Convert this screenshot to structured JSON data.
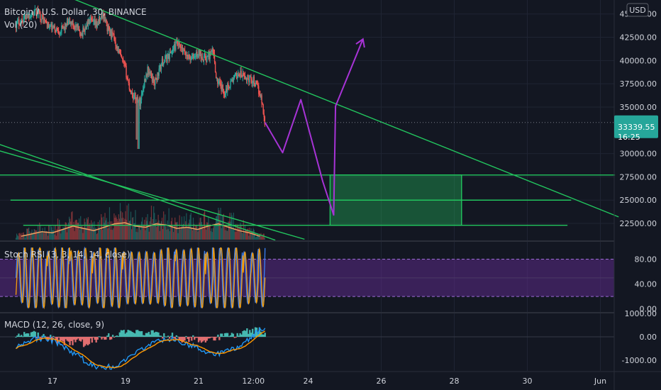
{
  "colors": {
    "background": "#131722",
    "grid": "#1f2433",
    "up": "#26a69a",
    "down": "#ef5350",
    "trendline": "#22c55e",
    "drawing": "#a733d6",
    "price_tag": "#26a69a",
    "volume_ma": "#f0a060",
    "stoch_k": "#3b82f6",
    "stoch_d": "#f59e0b",
    "stoch_band": "#5b2a86",
    "macd_line": "#2196f3",
    "macd_signal": "#ff9800"
  },
  "header": {
    "title": "Bitcoin / U.S. Dollar, 30, BINANCE",
    "volume_label": "Vol (20)",
    "currency_button": "USD"
  },
  "last_price": {
    "value": "33339.55",
    "countdown": "16:25"
  },
  "chart_data": [
    {
      "type": "candlestick",
      "name": "price",
      "title": "Bitcoin / U.S. Dollar, 30, BINANCE",
      "x_ticks": [
        "17",
        "19",
        "21",
        "12:00",
        "24",
        "26",
        "28",
        "30",
        "Jun"
      ],
      "y_ticks": [
        "45000.00",
        "42500.00",
        "40000.00",
        "37500.00",
        "35000.00",
        "30000.00",
        "27500.00",
        "25000.00",
        "22500.00"
      ],
      "ylim": [
        20600,
        46500
      ],
      "close_path": [
        [
          16.0,
          43900
        ],
        [
          16.3,
          44800
        ],
        [
          16.6,
          45200
        ],
        [
          16.9,
          43600
        ],
        [
          17.2,
          43200
        ],
        [
          17.5,
          44100
        ],
        [
          17.8,
          42900
        ],
        [
          18.0,
          44200
        ],
        [
          18.2,
          43800
        ],
        [
          18.4,
          45000
        ],
        [
          18.5,
          43500
        ],
        [
          18.7,
          42300
        ],
        [
          18.8,
          41000
        ],
        [
          19.0,
          39000
        ],
        [
          19.1,
          37200
        ],
        [
          19.2,
          36200
        ],
        [
          19.3,
          36000
        ],
        [
          19.4,
          35500
        ],
        [
          19.5,
          37500
        ],
        [
          19.6,
          39000
        ],
        [
          19.8,
          37600
        ],
        [
          20.0,
          39800
        ],
        [
          20.2,
          40600
        ],
        [
          20.4,
          41800
        ],
        [
          20.6,
          40800
        ],
        [
          20.8,
          40200
        ],
        [
          21.0,
          40800
        ],
        [
          21.2,
          40200
        ],
        [
          21.4,
          41000
        ],
        [
          21.5,
          37800
        ],
        [
          21.7,
          36600
        ],
        [
          21.9,
          37800
        ],
        [
          22.1,
          38600
        ],
        [
          22.3,
          38100
        ],
        [
          22.5,
          37900
        ],
        [
          22.7,
          36300
        ],
        [
          22.82,
          33300
        ]
      ],
      "candle_seed": 17,
      "projection": [
        [
          22.82,
          33339
        ],
        [
          23.3,
          30100
        ],
        [
          23.8,
          35800
        ],
        [
          24.4,
          27000
        ],
        [
          24.7,
          23400
        ],
        [
          24.75,
          35100
        ],
        [
          25.5,
          42300
        ]
      ],
      "zone": {
        "x": [
          24.6,
          28.2
        ],
        "y": [
          22300,
          27700
        ]
      },
      "levels": [
        {
          "price": 27700,
          "x": [
            13.55,
            32.4
          ]
        },
        {
          "price": 25000,
          "x": [
            15.85,
            31.2
          ]
        },
        {
          "price": 22300,
          "x": [
            16.2,
            31.1
          ]
        }
      ],
      "trendlines": [
        {
          "from": [
            16.05,
            49000
          ],
          "to": [
            32.5,
            23200
          ]
        },
        {
          "from": [
            10.4,
            38000
          ],
          "to": [
            23.1,
            20700
          ]
        },
        {
          "from": [
            12.3,
            34000
          ],
          "to": [
            23.9,
            20800
          ]
        }
      ],
      "volume": {
        "label": "Vol (20)",
        "series": [
          0.15,
          0.25,
          0.35,
          0.3,
          0.45,
          0.6,
          0.5,
          0.4,
          0.55,
          0.7,
          0.75,
          0.6,
          0.55,
          0.7,
          0.65,
          0.5,
          0.55,
          0.45,
          0.6,
          0.7,
          0.55,
          0.4,
          0.3,
          0.15
        ]
      }
    },
    {
      "type": "line",
      "name": "stoch-rsi",
      "title": "Stoch RSI (3, 3, 14, 14, close)",
      "y_ticks": [
        "80.00",
        "40.00",
        "0.00"
      ],
      "ylim": [
        -5,
        108
      ],
      "band": [
        20,
        80
      ],
      "mid": 50,
      "series": [
        {
          "name": "%K",
          "cycles": 33,
          "seed": 3
        },
        {
          "name": "%D",
          "cycles": 33,
          "seed": 3
        }
      ]
    },
    {
      "type": "bar",
      "name": "macd",
      "title": "MACD (12, 26, close, 9)",
      "y_ticks": [
        "1000.00",
        "0.00",
        "-1000.00"
      ],
      "ylim": [
        -1450,
        1000
      ],
      "series": [
        {
          "name": "histogram"
        },
        {
          "name": "macd"
        },
        {
          "name": "signal"
        }
      ]
    }
  ]
}
